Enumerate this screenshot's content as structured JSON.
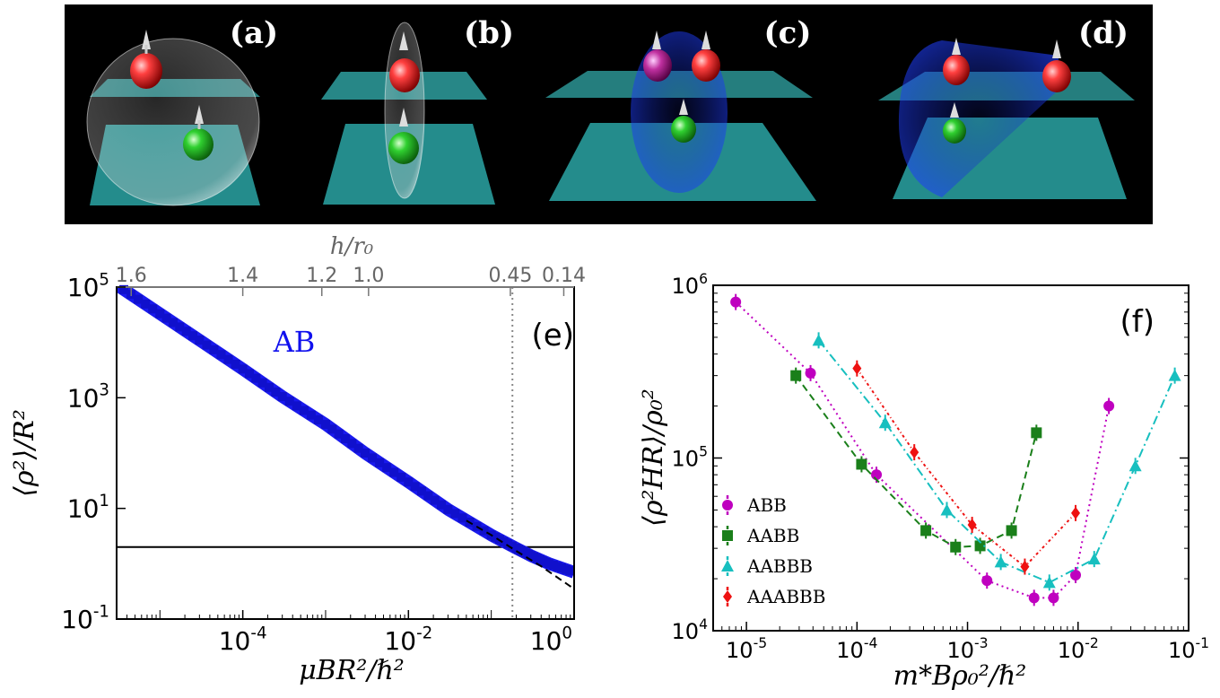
{
  "panels": {
    "a": "(a)",
    "b": "(b)",
    "c": "(c)",
    "d": "(d)"
  },
  "chart_data": [
    {
      "panel": "(e)",
      "type": "line",
      "series_label": "AB",
      "xlabel": "μBR²/ℏ²",
      "ylabel": "⟨ρ²⟩/R²",
      "top_xlabel": "h/r₀",
      "xscale": "log",
      "yscale": "log",
      "xlim": [
        3e-06,
        1
      ],
      "ylim": [
        0.1,
        100000
      ],
      "x_ticks": [
        {
          "v": 0.0001,
          "b": "10",
          "e": "-4"
        },
        {
          "v": 0.01,
          "b": "10",
          "e": "-2"
        },
        {
          "v": 1,
          "b": "10",
          "e": "0"
        }
      ],
      "y_ticks": [
        {
          "v": 0.1,
          "b": "10",
          "e": "-1"
        },
        {
          "v": 10,
          "b": "10",
          "e": "1"
        },
        {
          "v": 1000,
          "b": "10",
          "e": "3"
        },
        {
          "v": 100000,
          "b": "10",
          "e": "5"
        }
      ],
      "top_ticks": [
        {
          "label": "1.6",
          "x": 4.5e-06
        },
        {
          "label": "1.4",
          "x": 0.0001
        },
        {
          "label": "1.2",
          "x": 0.0009
        },
        {
          "label": "1.0",
          "x": 0.0033
        },
        {
          "label": "0.45",
          "x": 0.17
        },
        {
          "label": "0.14",
          "x": 0.75
        }
      ],
      "vline_x": 0.18,
      "hline_y": 2,
      "curve": {
        "x": [
          3e-06,
          1e-05,
          3e-05,
          0.0001,
          0.0003,
          0.001,
          0.003,
          0.01,
          0.03,
          0.1,
          0.2,
          0.3,
          0.5,
          1
        ],
        "y": [
          110000,
          33000,
          11000,
          3300,
          1050,
          330,
          100,
          30,
          9.6,
          3.3,
          1.9,
          1.4,
          1.0,
          0.7
        ]
      },
      "asymptote": {
        "x": [
          0.05,
          0.1,
          0.2,
          0.4,
          1
        ],
        "y": [
          6.0,
          3.3,
          1.7,
          0.9,
          0.35
        ]
      }
    },
    {
      "panel": "(f)",
      "type": "line",
      "xlabel": "m*Bρ₀²/ℏ²",
      "ylabel": "⟨ρ²HR⟩/ρ₀²",
      "xscale": "log",
      "yscale": "log",
      "xlim": [
        5e-06,
        0.1
      ],
      "ylim": [
        10000,
        1000000
      ],
      "x_ticks": [
        {
          "v": 1e-05,
          "b": "10",
          "e": "-5"
        },
        {
          "v": 0.0001,
          "b": "10",
          "e": "-4"
        },
        {
          "v": 0.001,
          "b": "10",
          "e": "-3"
        },
        {
          "v": 0.01,
          "b": "10",
          "e": "-2"
        },
        {
          "v": 0.1,
          "b": "10",
          "e": "-1"
        }
      ],
      "y_ticks": [
        {
          "v": 10000,
          "b": "10",
          "e": "4"
        },
        {
          "v": 100000,
          "b": "10",
          "e": "5"
        },
        {
          "v": 1000000,
          "b": "10",
          "e": "6"
        }
      ],
      "legend_position": "lower-left",
      "series": [
        {
          "name": "ABB",
          "color": "#bf00bf",
          "marker": "circle",
          "dash": "2,4",
          "x": [
            8e-06,
            3.8e-05,
            0.00015,
            0.0015,
            0.004,
            0.006,
            0.0095,
            0.019
          ],
          "y": [
            800000,
            310000,
            80000,
            19500,
            15500,
            15500,
            21000,
            200000
          ]
        },
        {
          "name": "AABB",
          "color": "#1a7f1a",
          "marker": "square",
          "dash": "8,5",
          "x": [
            2.8e-05,
            0.00011,
            0.00042,
            0.00078,
            0.0013,
            0.0025,
            0.0042
          ],
          "y": [
            300000,
            92000,
            38000,
            30500,
            31000,
            38000,
            140000
          ]
        },
        {
          "name": "AABBB",
          "color": "#17bfbf",
          "marker": "triangle",
          "dash": "10,4,2,4",
          "x": [
            4.5e-05,
            0.00018,
            0.00065,
            0.002,
            0.0055,
            0.014,
            0.033,
            0.075
          ],
          "y": [
            480000,
            160000,
            50000,
            25000,
            19000,
            26000,
            90000,
            300000
          ]
        },
        {
          "name": "AAABBB",
          "color": "#ee1111",
          "marker": "diamond",
          "dash": "3,3,1,3",
          "x": [
            0.0001,
            0.00033,
            0.0011,
            0.0033,
            0.0095
          ],
          "y": [
            330000,
            108000,
            41000,
            23500,
            48000
          ]
        }
      ]
    }
  ]
}
